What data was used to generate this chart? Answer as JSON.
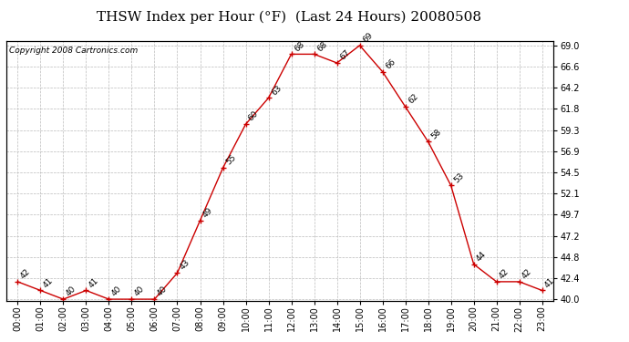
{
  "title": "THSW Index per Hour (°F)  (Last 24 Hours) 20080508",
  "copyright": "Copyright 2008 Cartronics.com",
  "hours": [
    "00:00",
    "01:00",
    "02:00",
    "03:00",
    "04:00",
    "05:00",
    "06:00",
    "07:00",
    "08:00",
    "09:00",
    "10:00",
    "11:00",
    "12:00",
    "13:00",
    "14:00",
    "15:00",
    "16:00",
    "17:00",
    "18:00",
    "19:00",
    "20:00",
    "21:00",
    "22:00",
    "23:00"
  ],
  "values": [
    42,
    41,
    40,
    41,
    40,
    40,
    40,
    43,
    49,
    55,
    60,
    63,
    68,
    68,
    67,
    69,
    66,
    62,
    58,
    53,
    44,
    42,
    42,
    41
  ],
  "ylim_min": 40.0,
  "ylim_max": 69.0,
  "yticks": [
    40.0,
    42.4,
    44.8,
    47.2,
    49.7,
    52.1,
    54.5,
    56.9,
    59.3,
    61.8,
    64.2,
    66.6,
    69.0
  ],
  "line_color": "#cc0000",
  "marker_color": "#cc0000",
  "bg_color": "#ffffff",
  "grid_color": "#bbbbbb",
  "title_fontsize": 11,
  "label_fontsize": 6.5,
  "tick_fontsize": 7,
  "copyright_fontsize": 6.5
}
